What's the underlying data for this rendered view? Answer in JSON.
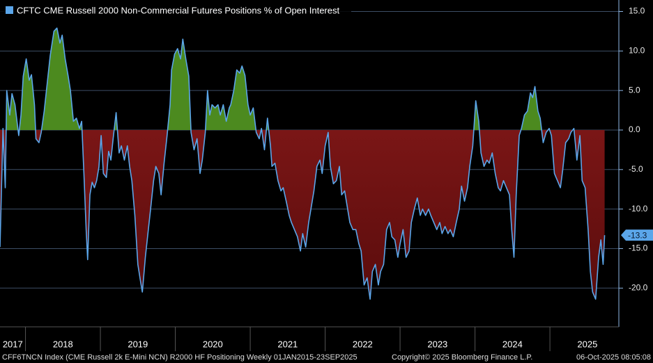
{
  "chart_data": {
    "type": "area",
    "x": [
      2017.66,
      2017.7,
      2017.73,
      2017.75,
      2017.79,
      2017.82,
      2017.86,
      2017.91,
      2017.94,
      2017.97,
      2018.01,
      2018.05,
      2018.08,
      2018.12,
      2018.14,
      2018.18,
      2018.21,
      2018.25,
      2018.29,
      2018.33,
      2018.38,
      2018.42,
      2018.46,
      2018.49,
      2018.53,
      2018.57,
      2018.6,
      2018.64,
      2018.68,
      2018.72,
      2018.75,
      2018.78,
      2018.81,
      2018.83,
      2018.86,
      2018.89,
      2018.92,
      2018.95,
      2018.98,
      2019.01,
      2019.04,
      2019.08,
      2019.11,
      2019.14,
      2019.17,
      2019.21,
      2019.25,
      2019.28,
      2019.32,
      2019.36,
      2019.39,
      2019.42,
      2019.46,
      2019.5,
      2019.54,
      2019.56,
      2019.6,
      2019.64,
      2019.67,
      2019.71,
      2019.74,
      2019.78,
      2019.81,
      2019.85,
      2019.89,
      2019.93,
      2019.95,
      2019.99,
      2020.03,
      2020.07,
      2020.1,
      2020.14,
      2020.18,
      2020.21,
      2020.25,
      2020.29,
      2020.33,
      2020.36,
      2020.4,
      2020.43,
      2020.46,
      2020.49,
      2020.53,
      2020.57,
      2020.6,
      2020.64,
      2020.68,
      2020.72,
      2020.74,
      2020.78,
      2020.82,
      2020.86,
      2020.89,
      2020.93,
      2020.97,
      2021.0,
      2021.04,
      2021.08,
      2021.12,
      2021.15,
      2021.19,
      2021.23,
      2021.27,
      2021.29,
      2021.33,
      2021.37,
      2021.41,
      2021.44,
      2021.48,
      2021.52,
      2021.55,
      2021.59,
      2021.63,
      2021.67,
      2021.7,
      2021.74,
      2021.78,
      2021.81,
      2021.85,
      2021.89,
      2021.93,
      2021.96,
      2022.0,
      2022.04,
      2022.07,
      2022.11,
      2022.15,
      2022.19,
      2022.22,
      2022.26,
      2022.3,
      2022.33,
      2022.37,
      2022.41,
      2022.45,
      2022.48,
      2022.52,
      2022.56,
      2022.6,
      2022.63,
      2022.67,
      2022.71,
      2022.74,
      2022.78,
      2022.82,
      2022.86,
      2022.89,
      2022.93,
      2022.97,
      2023.0,
      2023.04,
      2023.08,
      2023.12,
      2023.15,
      2023.19,
      2023.23,
      2023.27,
      2023.3,
      2023.34,
      2023.38,
      2023.41,
      2023.45,
      2023.49,
      2023.53,
      2023.56,
      2023.6,
      2023.64,
      2023.67,
      2023.71,
      2023.75,
      2023.79,
      2023.82,
      2023.86,
      2023.9,
      2023.93,
      2023.97,
      2024.01,
      2024.05,
      2024.08,
      2024.12,
      2024.16,
      2024.19,
      2024.23,
      2024.27,
      2024.31,
      2024.34,
      2024.38,
      2024.42,
      2024.46,
      2024.49,
      2024.52,
      2024.55,
      2024.59,
      2024.62,
      2024.66,
      2024.7,
      2024.74,
      2024.77,
      2024.8,
      2024.84,
      2024.87,
      2024.91,
      2024.95,
      2024.99,
      2025.02,
      2025.06,
      2025.1,
      2025.14,
      2025.17,
      2025.21,
      2025.25,
      2025.28,
      2025.32,
      2025.36,
      2025.4,
      2025.43,
      2025.47,
      2025.51,
      2025.54,
      2025.57,
      2025.61,
      2025.65,
      2025.68,
      2025.71,
      2025.73
    ],
    "series": [
      {
        "name": "CFTC CME Russell 2000 Non-Commercial Futures Positions % of Open Interest",
        "color": "#5ba6ea",
        "values": [
          -14.8,
          0.2,
          -7.3,
          5.0,
          1.9,
          4.6,
          3.2,
          -0.7,
          1.9,
          6.8,
          9.0,
          6.3,
          7.0,
          3.2,
          -1.1,
          -1.6,
          -0.3,
          2.4,
          5.9,
          9.4,
          12.5,
          12.9,
          11.0,
          12.0,
          9.0,
          6.8,
          5.0,
          1.1,
          1.5,
          0.2,
          1.1,
          -5.5,
          -12.6,
          -16.4,
          -8.2,
          -6.6,
          -7.3,
          -6.4,
          -4.7,
          -0.7,
          -5.5,
          -6.0,
          -2.7,
          -3.8,
          -1.1,
          2.2,
          -2.9,
          -2.0,
          -3.8,
          -2.0,
          -4.6,
          -6.4,
          -10.8,
          -17.0,
          -19.4,
          -20.5,
          -16.1,
          -12.6,
          -10.0,
          -6.4,
          -4.6,
          -5.5,
          -8.2,
          -4.2,
          -0.7,
          3.2,
          7.6,
          9.6,
          10.3,
          9.0,
          11.5,
          9.0,
          6.8,
          -0.3,
          -2.5,
          -1.1,
          -5.5,
          -3.8,
          -0.3,
          5.0,
          1.9,
          3.2,
          2.8,
          3.2,
          1.9,
          3.2,
          1.1,
          2.8,
          3.2,
          5.0,
          7.6,
          7.2,
          8.1,
          6.9,
          3.2,
          1.9,
          2.8,
          -0.3,
          -1.1,
          0.2,
          -2.5,
          1.5,
          -2.0,
          -4.6,
          -4.2,
          -6.4,
          -7.7,
          -7.3,
          -9.0,
          -10.8,
          -11.7,
          -12.6,
          -13.5,
          -15.3,
          -13.1,
          -14.8,
          -11.7,
          -10.0,
          -7.7,
          -4.6,
          -3.8,
          -5.5,
          -2.0,
          -0.3,
          -4.6,
          -6.8,
          -6.4,
          -4.6,
          -8.2,
          -7.7,
          -10.0,
          -11.7,
          -12.6,
          -12.6,
          -14.4,
          -15.3,
          -19.6,
          -18.7,
          -21.4,
          -17.9,
          -17.0,
          -19.6,
          -17.9,
          -17.0,
          -12.6,
          -11.7,
          -13.5,
          -13.9,
          -16.1,
          -14.4,
          -12.6,
          -16.1,
          -15.3,
          -11.7,
          -10.0,
          -8.6,
          -10.8,
          -10.0,
          -10.8,
          -10.0,
          -10.8,
          -11.7,
          -12.6,
          -11.7,
          -13.1,
          -12.2,
          -13.1,
          -12.6,
          -13.5,
          -11.7,
          -10.0,
          -7.1,
          -9.0,
          -7.3,
          -4.6,
          -2.0,
          3.7,
          1.1,
          -2.9,
          -4.6,
          -3.8,
          -4.2,
          -2.9,
          -5.5,
          -7.3,
          -7.7,
          -6.4,
          -7.3,
          -8.2,
          -12.6,
          -16.1,
          -8.2,
          -0.7,
          0.2,
          1.9,
          2.4,
          4.7,
          4.1,
          5.5,
          2.4,
          1.5,
          -1.6,
          -0.3,
          0.2,
          -0.7,
          -5.5,
          -6.4,
          -7.3,
          -5.1,
          -1.6,
          -1.1,
          -0.3,
          0.2,
          -3.8,
          -0.7,
          -6.4,
          -7.3,
          -12.6,
          -17.9,
          -20.5,
          -21.4,
          -16.1,
          -13.9,
          -17.0,
          -13.3
        ]
      }
    ],
    "positive_color": "#4c8a1f",
    "negative_color": "#8e1c1c",
    "xlim": [
      2017.66,
      2025.92
    ],
    "xticks": [
      {
        "value": 2017,
        "label": "2017"
      },
      {
        "value": 2018,
        "label": "2018"
      },
      {
        "value": 2019,
        "label": "2019"
      },
      {
        "value": 2020,
        "label": "2020"
      },
      {
        "value": 2021,
        "label": "2021"
      },
      {
        "value": 2022,
        "label": "2022"
      },
      {
        "value": 2023,
        "label": "2023"
      },
      {
        "value": 2024,
        "label": "2024"
      },
      {
        "value": 2025,
        "label": "2025"
      }
    ],
    "ylim": [
      -24.9,
      16.45
    ],
    "yticks": [
      {
        "value": 15,
        "label": "15.0"
      },
      {
        "value": 10,
        "label": "10.0"
      },
      {
        "value": 5,
        "label": "5.0"
      },
      {
        "value": 0,
        "label": "0.0"
      },
      {
        "value": -5,
        "label": "-5.0"
      },
      {
        "value": -10,
        "label": "-10.0"
      },
      {
        "value": -15,
        "label": "-15.0"
      },
      {
        "value": -20,
        "label": "-20.0"
      }
    ],
    "grid": true,
    "footer": {
      "source": "CFF6TNCN Index (CME Russell 2k E-Mini NCN) R2000 HF Positioning Weekly 01JAN2015-23SEP2025",
      "copyright": "Copyright© 2025 Bloomberg Finance L.P.",
      "timestamp": "06-Oct-2025 08:05:08"
    }
  }
}
